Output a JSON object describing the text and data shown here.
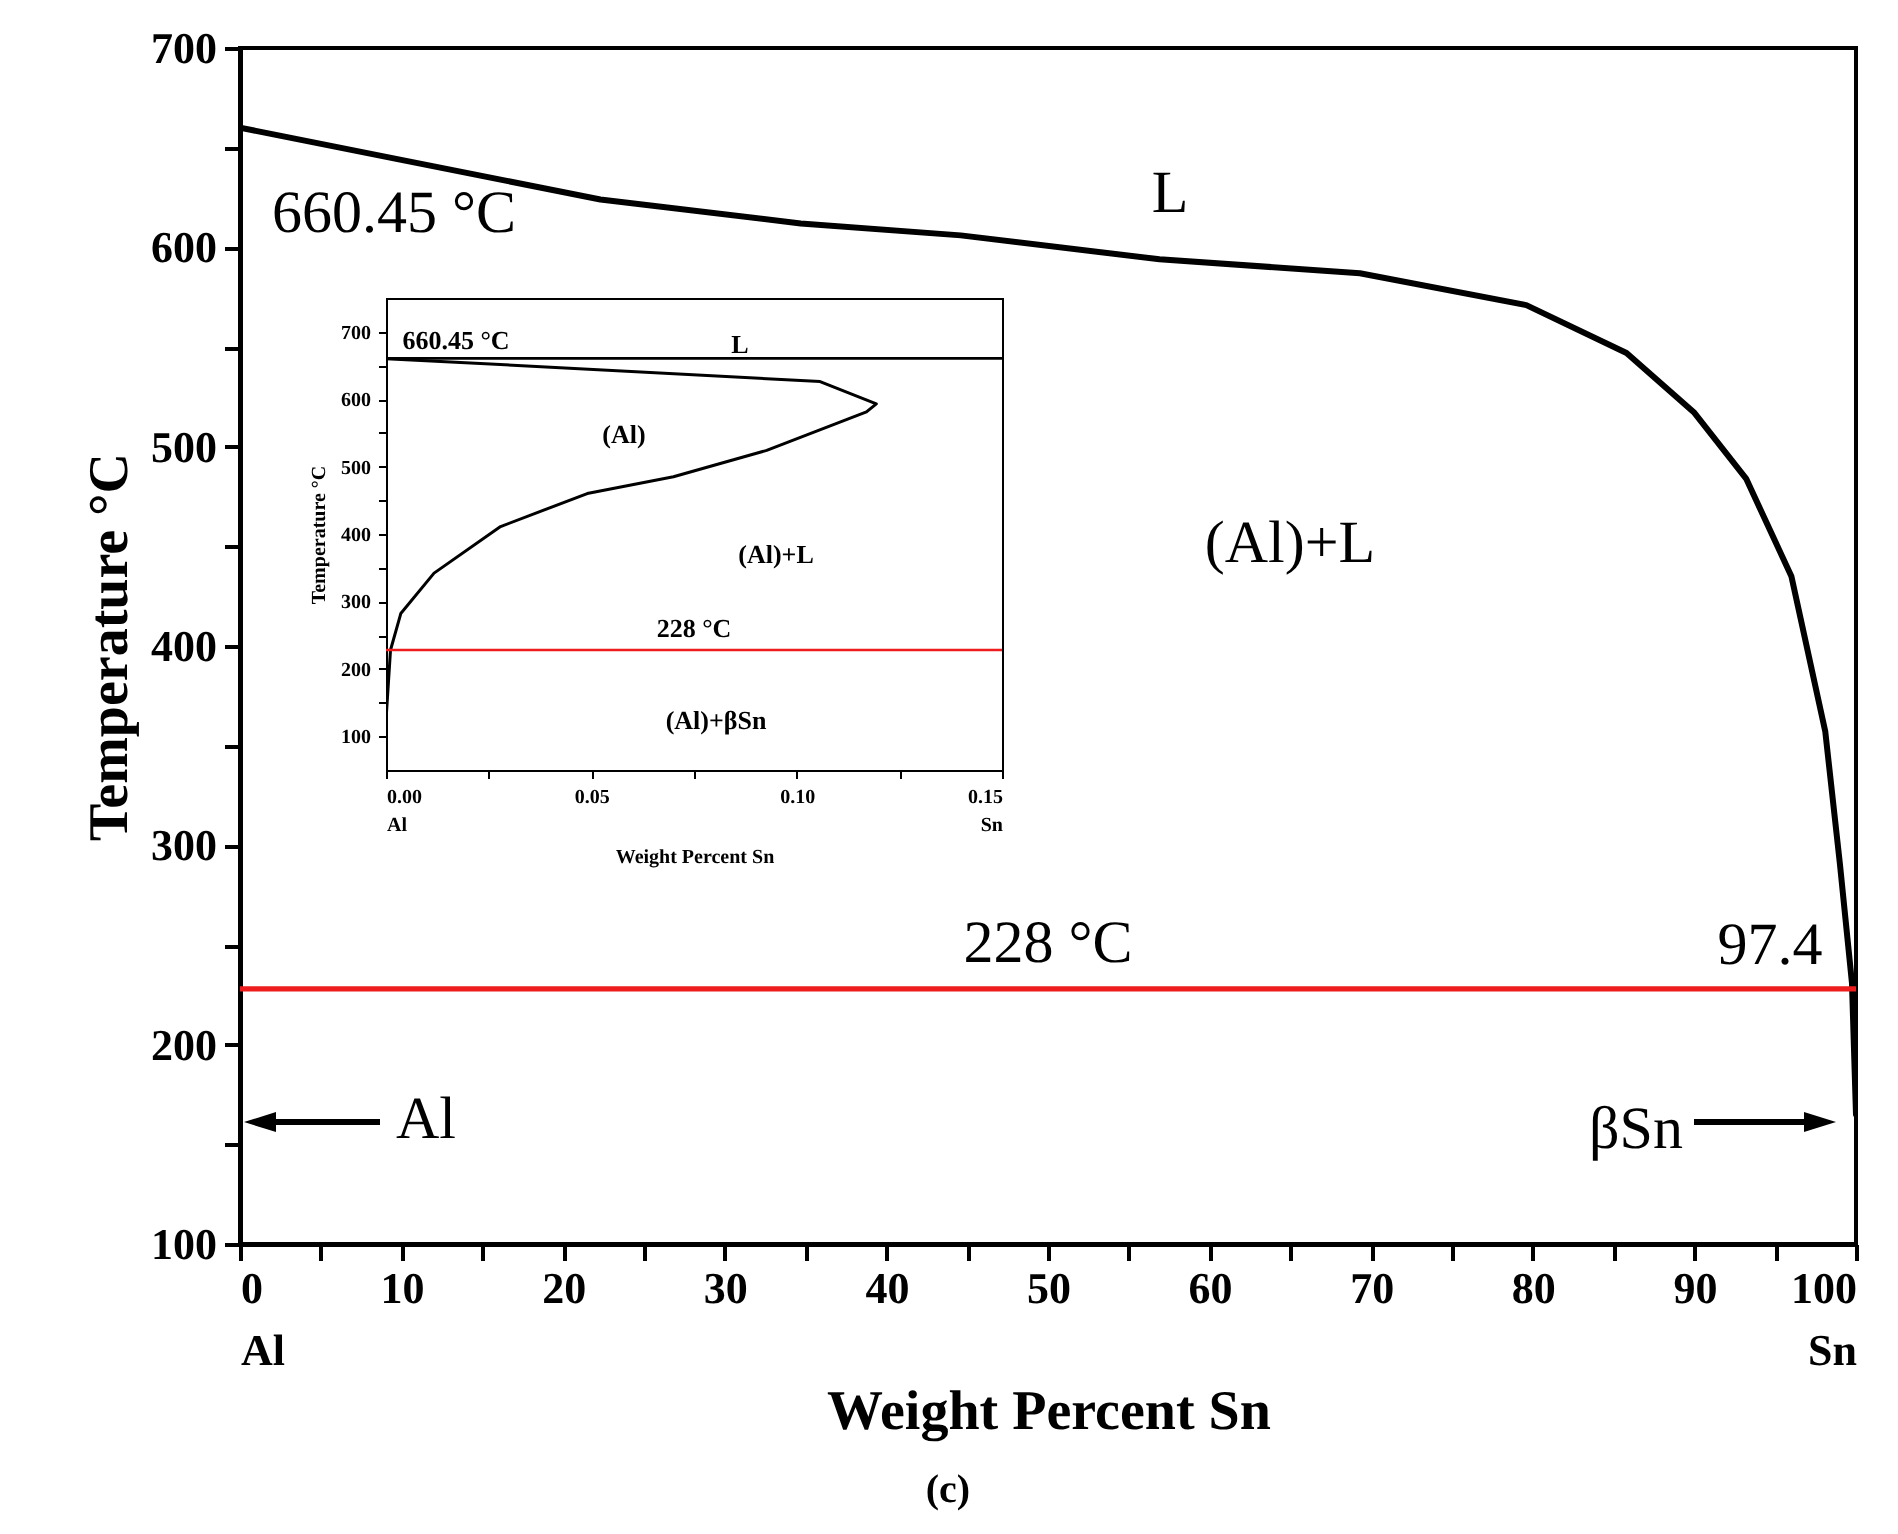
{
  "chart_data": [
    {
      "type": "line",
      "xlabel": "Weight Percent Sn",
      "ylabel": "Temperature °C",
      "xlim": [
        0,
        100
      ],
      "ylim": [
        100,
        700
      ],
      "xticks": [
        {
          "value": 0,
          "label": "0\nAl"
        },
        {
          "value": 5,
          "label": null
        },
        10,
        {
          "value": 15,
          "label": null
        },
        20,
        {
          "value": 25,
          "label": null
        },
        30,
        {
          "value": 35,
          "label": null
        },
        40,
        {
          "value": 45,
          "label": null
        },
        50,
        {
          "value": 55,
          "label": null
        },
        60,
        {
          "value": 65,
          "label": null
        },
        70,
        {
          "value": 75,
          "label": null
        },
        80,
        {
          "value": 85,
          "label": null
        },
        90,
        {
          "value": 95,
          "label": null
        },
        {
          "value": 100,
          "label": "100\nSn"
        }
      ],
      "yticks": [
        100,
        {
          "value": 150,
          "label": null
        },
        200,
        {
          "value": 250,
          "label": null
        },
        300,
        {
          "value": 350,
          "label": null
        },
        400,
        {
          "value": 450,
          "label": null
        },
        500,
        {
          "value": 550,
          "label": null
        },
        600,
        {
          "value": 650,
          "label": null
        },
        700
      ],
      "series": [
        {
          "color": "#000000",
          "x": [
            0,
            9.9,
            22.3,
            34.7,
            44.6,
            56.9,
            69.3,
            79.6,
            85.8,
            90.0,
            93.2,
            96.0,
            98.1,
            99.0,
            99.75,
            100
          ],
          "values": [
            660,
            644,
            624,
            612,
            606,
            594,
            587,
            571,
            547,
            517,
            484,
            435,
            357,
            291,
            231,
            165
          ]
        }
      ],
      "ref_lines": [
        {
          "axis": "y",
          "value": 228,
          "label": "228 °C",
          "color": "#ee1c1c"
        }
      ],
      "annotations": [
        "660.45 °C",
        "L",
        "(Al)+L",
        "97.4",
        "Al",
        "βSn",
        "(c)"
      ],
      "grid": false,
      "marker": "none",
      "line_style": "solid"
    },
    {
      "type": "line",
      "xlabel": "Weight Percent Sn",
      "ylabel": "Temperature °C",
      "xlim": [
        0,
        0.15
      ],
      "ylim": [
        50,
        750
      ],
      "xticks": [
        {
          "value": 0,
          "label": "0.00\nAl"
        },
        {
          "value": 0.025,
          "label": null
        },
        {
          "value": 0.05,
          "label": "0.05"
        },
        {
          "value": 0.075,
          "label": null
        },
        {
          "value": 0.1,
          "label": "0.10"
        },
        {
          "value": 0.125,
          "label": null
        },
        {
          "value": 0.15,
          "label": "0.15\nSn"
        }
      ],
      "yticks": [
        100,
        {
          "value": 150,
          "label": null
        },
        200,
        {
          "value": 250,
          "label": null
        },
        300,
        {
          "value": 350,
          "label": null
        },
        400,
        {
          "value": 450,
          "label": null
        },
        500,
        {
          "value": 550,
          "label": null
        },
        600,
        {
          "value": 650,
          "label": null
        },
        700
      ],
      "series": [
        {
          "color": "#000000",
          "x": [
            0,
            0.023,
            0.1057,
            0.1194,
            0.117,
            0.0927,
            0.07,
            0.049,
            0.0279,
            0.0117,
            0.0036,
            0.0011,
            0
          ],
          "values": [
            660,
            653,
            626,
            593,
            581,
            524,
            485,
            460,
            411,
            342,
            282,
            228,
            124
          ]
        }
      ],
      "ref_lines": [
        {
          "axis": "y",
          "value": 660.45,
          "color": "#000000"
        },
        {
          "axis": "y",
          "value": 228,
          "label": "228 °C",
          "color": "#ee1c1c"
        }
      ],
      "annotations": [
        "660.45 °C",
        "L",
        "(Al)",
        "(Al)+L",
        "(Al)+βSn"
      ],
      "grid": false,
      "marker": "none",
      "line_style": "solid"
    }
  ]
}
